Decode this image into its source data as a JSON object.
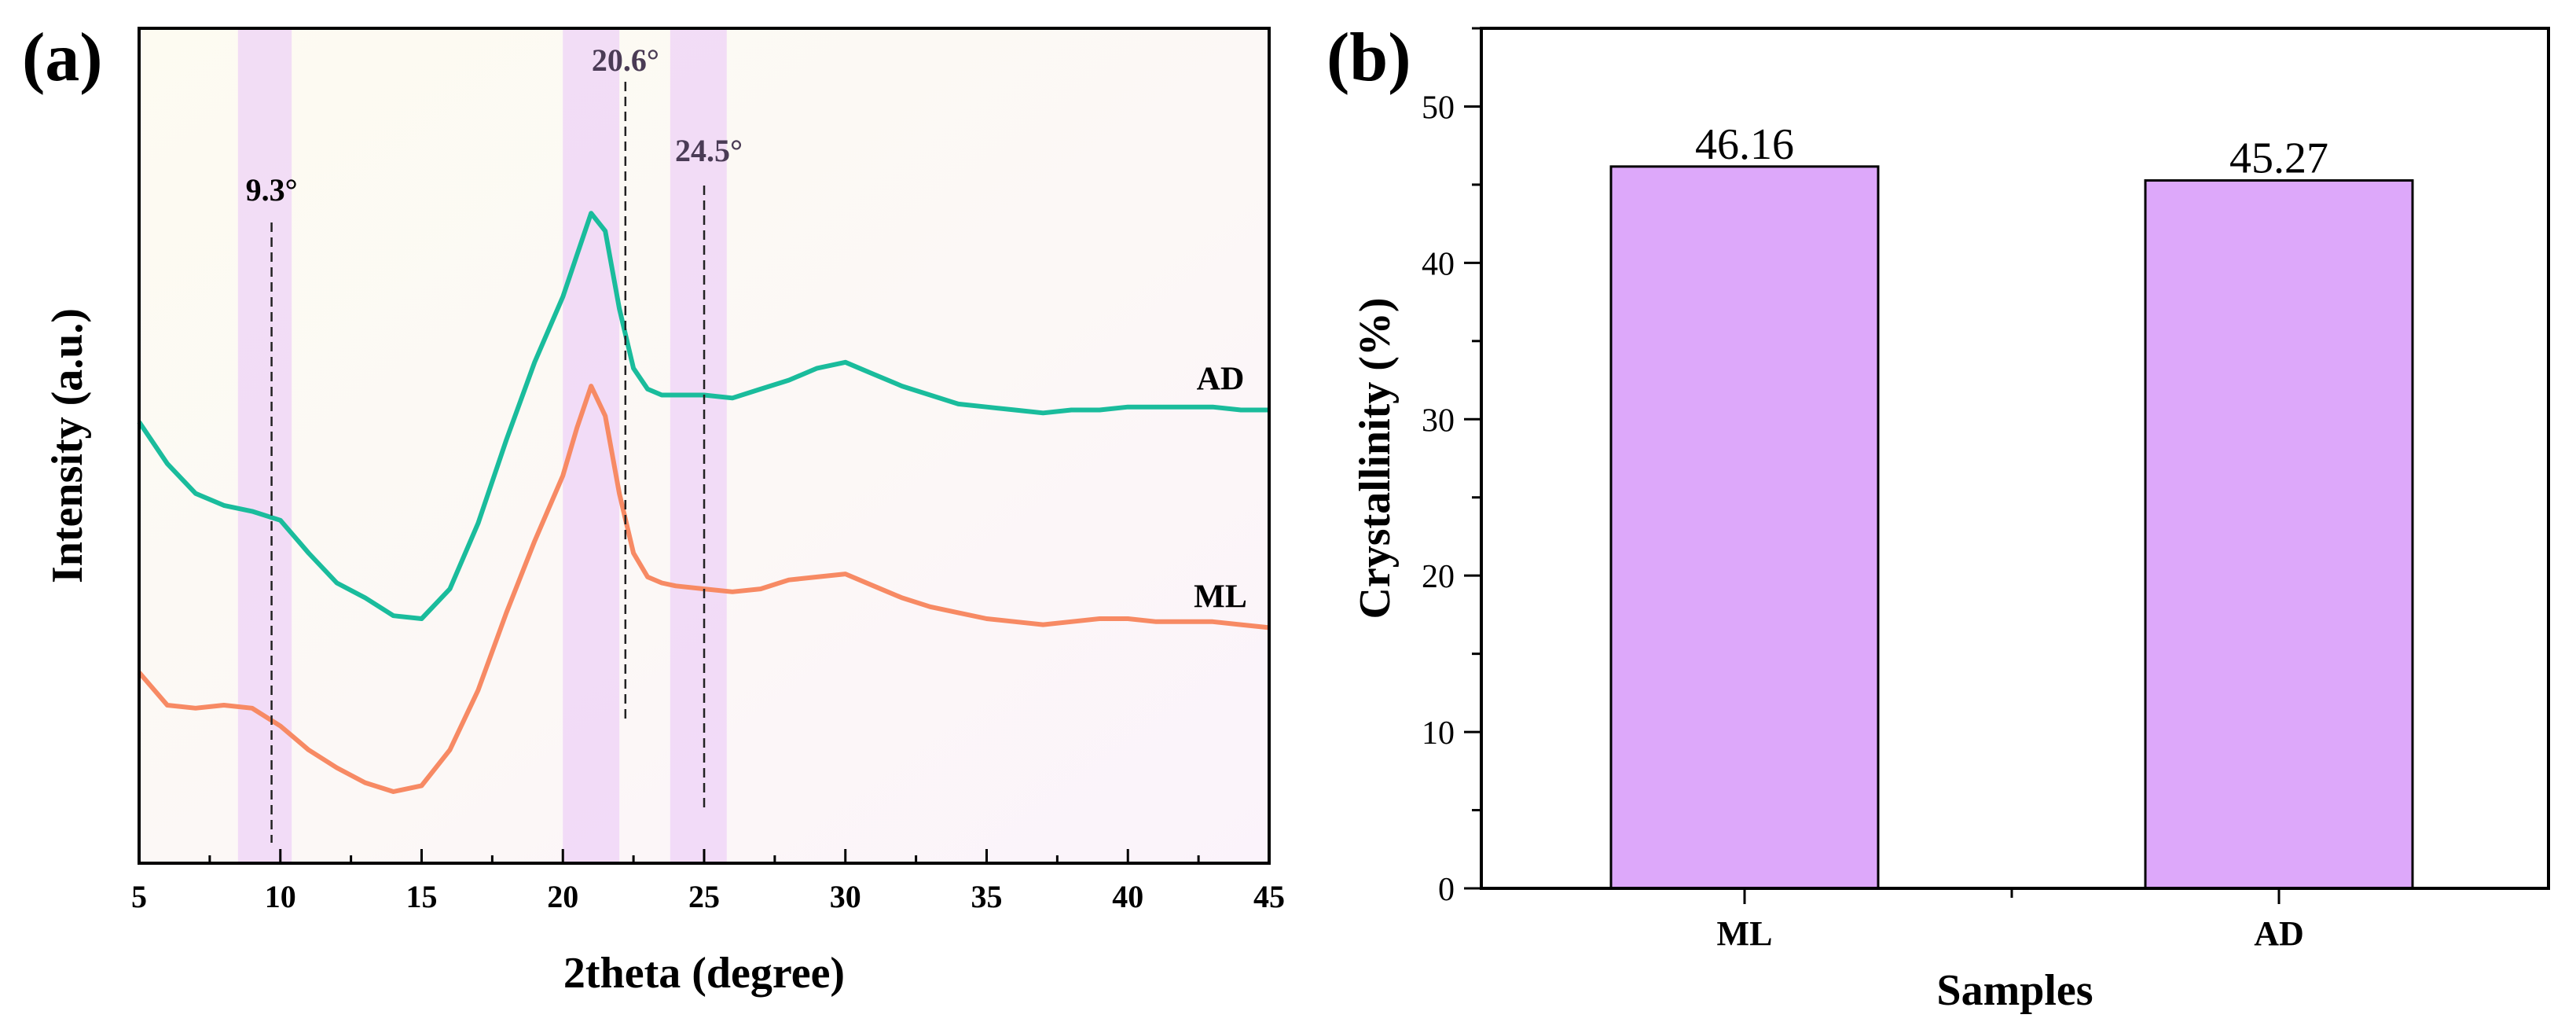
{
  "chart_data": [
    {
      "panel": "(a)",
      "type": "line",
      "xlabel": "2theta (degree)",
      "ylabel": "Intensity (a.u.)",
      "xlim": [
        5,
        45
      ],
      "xticks": [
        5,
        10,
        15,
        20,
        25,
        30,
        35,
        40,
        45
      ],
      "yticks": [],
      "grid": false,
      "legend": "none",
      "highlight_bands": [
        {
          "from": 8.5,
          "to": 10.4
        },
        {
          "from": 20.0,
          "to": 22.0
        },
        {
          "from": 23.8,
          "to": 25.8
        }
      ],
      "peaks": [
        {
          "x": 9.3,
          "label": "9.3°"
        },
        {
          "x": 20.6,
          "label": "20.6°"
        },
        {
          "x": 24.5,
          "label": "24.5°"
        }
      ],
      "series": [
        {
          "name": "AD",
          "color": "#1abc9c",
          "x": [
            5,
            6,
            7,
            8,
            9,
            10,
            11,
            12,
            13,
            14,
            15,
            16,
            17,
            18,
            19,
            20,
            20.5,
            21,
            21.5,
            22,
            22.5,
            23,
            23.5,
            24,
            25,
            26,
            27,
            28,
            29,
            30,
            31,
            32,
            33,
            34,
            35,
            36,
            37,
            38,
            39,
            40,
            41,
            42,
            43,
            44,
            45
          ],
          "y": [
            7.4,
            6.7,
            6.2,
            6.0,
            5.9,
            5.75,
            5.2,
            4.7,
            4.45,
            4.15,
            4.1,
            4.6,
            5.7,
            7.1,
            8.4,
            9.5,
            10.2,
            10.9,
            10.6,
            9.3,
            8.3,
            7.95,
            7.85,
            7.85,
            7.85,
            7.8,
            7.95,
            8.1,
            8.3,
            8.4,
            8.2,
            8.0,
            7.85,
            7.7,
            7.65,
            7.6,
            7.55,
            7.6,
            7.6,
            7.65,
            7.65,
            7.65,
            7.65,
            7.6,
            7.6
          ]
        },
        {
          "name": "ML",
          "color": "#f78a64",
          "x": [
            5,
            6,
            7,
            8,
            9,
            10,
            11,
            12,
            13,
            14,
            15,
            16,
            17,
            18,
            19,
            20,
            20.5,
            21,
            21.5,
            22,
            22.5,
            23,
            23.5,
            24,
            25,
            26,
            27,
            28,
            29,
            30,
            31,
            32,
            33,
            34,
            35,
            36,
            37,
            38,
            39,
            40,
            41,
            42,
            43,
            44,
            45
          ],
          "y": [
            3.2,
            2.65,
            2.6,
            2.65,
            2.6,
            2.3,
            1.9,
            1.6,
            1.35,
            1.2,
            1.3,
            1.9,
            2.9,
            4.2,
            5.4,
            6.5,
            7.3,
            8.0,
            7.5,
            6.2,
            5.2,
            4.8,
            4.7,
            4.65,
            4.6,
            4.55,
            4.6,
            4.75,
            4.8,
            4.85,
            4.65,
            4.45,
            4.3,
            4.2,
            4.1,
            4.05,
            4.0,
            4.05,
            4.1,
            4.1,
            4.05,
            4.05,
            4.05,
            4.0,
            3.95
          ]
        }
      ]
    },
    {
      "panel": "(b)",
      "type": "bar",
      "xlabel": "Samples",
      "ylabel": "Crystallinity (%)",
      "categories": [
        "ML",
        "AD"
      ],
      "values": [
        46.16,
        45.27
      ],
      "value_labels": [
        "46.16",
        "45.27"
      ],
      "ylim": [
        0,
        55
      ],
      "yticks": [
        0,
        10,
        20,
        30,
        40,
        50
      ],
      "bar_color": "#dda8fa",
      "bar_edge": "#000000",
      "grid": false,
      "legend": "none"
    }
  ]
}
